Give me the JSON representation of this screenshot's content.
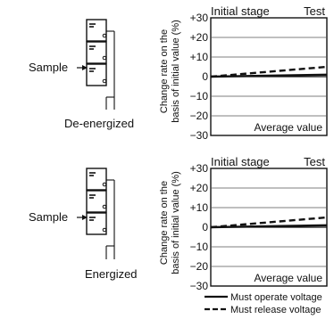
{
  "panels": [
    {
      "condition": "De-energized",
      "sample_label": "Sample",
      "header_left": "Initial stage",
      "header_right": "Test",
      "ylabel_line1": "Change rate on the",
      "ylabel_line2": "basis of initial value (%)",
      "yticks": [
        "+30",
        "+20",
        "+10",
        "0",
        "−10",
        "−20",
        "−30"
      ],
      "box_label": "Average value"
    },
    {
      "condition": "Energized",
      "sample_label": "Sample",
      "header_left": "Initial stage",
      "header_right": "Test",
      "ylabel_line1": "Change rate on the",
      "ylabel_line2": "basis of initial value (%)",
      "yticks": [
        "+30",
        "+20",
        "+10",
        "0",
        "−10",
        "−20",
        "−30"
      ],
      "box_label": "Average value"
    }
  ],
  "legend": {
    "solid": "Must operate voltage",
    "dashed": "Must release voltage"
  },
  "chart_data": [
    {
      "type": "line",
      "x": [
        0,
        1
      ],
      "ylim": [
        -30,
        30
      ],
      "grid": true,
      "series": [
        {
          "name": "Must operate voltage",
          "values": [
            0,
            1
          ]
        },
        {
          "name": "Must release voltage",
          "values": [
            0,
            5
          ]
        }
      ]
    },
    {
      "type": "line",
      "x": [
        0,
        1
      ],
      "ylim": [
        -30,
        30
      ],
      "grid": true,
      "series": [
        {
          "name": "Must operate voltage",
          "values": [
            0,
            1
          ]
        },
        {
          "name": "Must release voltage",
          "values": [
            0,
            5
          ]
        }
      ]
    }
  ]
}
